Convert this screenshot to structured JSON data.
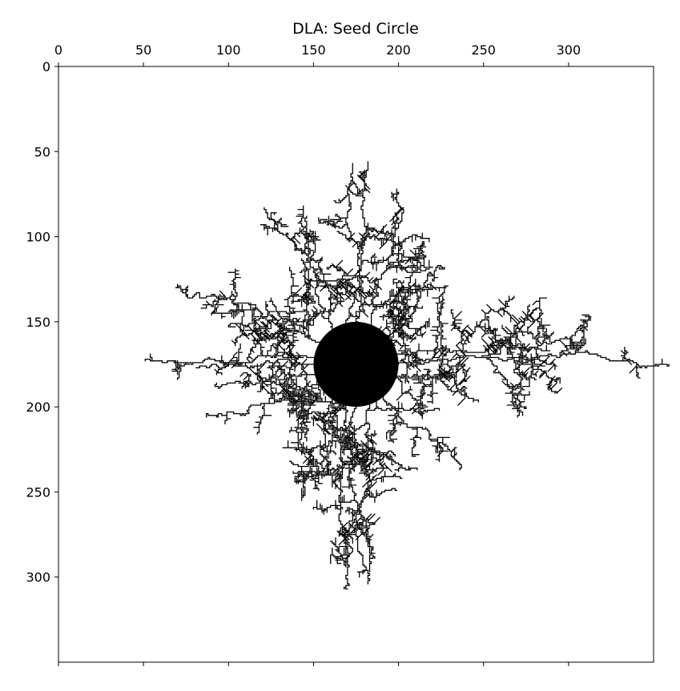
{
  "chart_data": {
    "type": "heatmap",
    "title": "DLA: Seed Circle",
    "xlabel": "",
    "ylabel": "",
    "x_axis_position": "top",
    "y_axis_inverted": true,
    "xlim": [
      0,
      350
    ],
    "ylim": [
      350,
      0
    ],
    "x_ticks": [
      0,
      50,
      100,
      150,
      200,
      250,
      300
    ],
    "y_ticks": [
      0,
      50,
      100,
      150,
      200,
      250,
      300
    ],
    "grid": false,
    "colors": {
      "background": "#ffffff",
      "cluster": "#000000",
      "frame": "#000000"
    },
    "seed": {
      "shape": "circle",
      "center": [
        175,
        175
      ],
      "radius": 25
    },
    "branches": [
      {
        "angle_deg": -150,
        "length": 125
      },
      {
        "angle_deg": -125,
        "length": 110
      },
      {
        "angle_deg": -105,
        "length": 95
      },
      {
        "angle_deg": -88,
        "length": 95
      },
      {
        "angle_deg": -70,
        "length": 90
      },
      {
        "angle_deg": -45,
        "length": 70
      },
      {
        "angle_deg": -15,
        "length": 110
      },
      {
        "angle_deg": 0,
        "length": 160
      },
      {
        "angle_deg": 20,
        "length": 60
      },
      {
        "angle_deg": 50,
        "length": 80
      },
      {
        "angle_deg": 70,
        "length": 110
      },
      {
        "angle_deg": 90,
        "length": 105
      },
      {
        "angle_deg": 105,
        "length": 110
      },
      {
        "angle_deg": 125,
        "length": 85
      },
      {
        "angle_deg": 155,
        "length": 90
      },
      {
        "angle_deg": 180,
        "length": 100
      },
      {
        "angle_deg": 165,
        "length": 60
      },
      {
        "angle_deg": -170,
        "length": 70
      }
    ]
  }
}
